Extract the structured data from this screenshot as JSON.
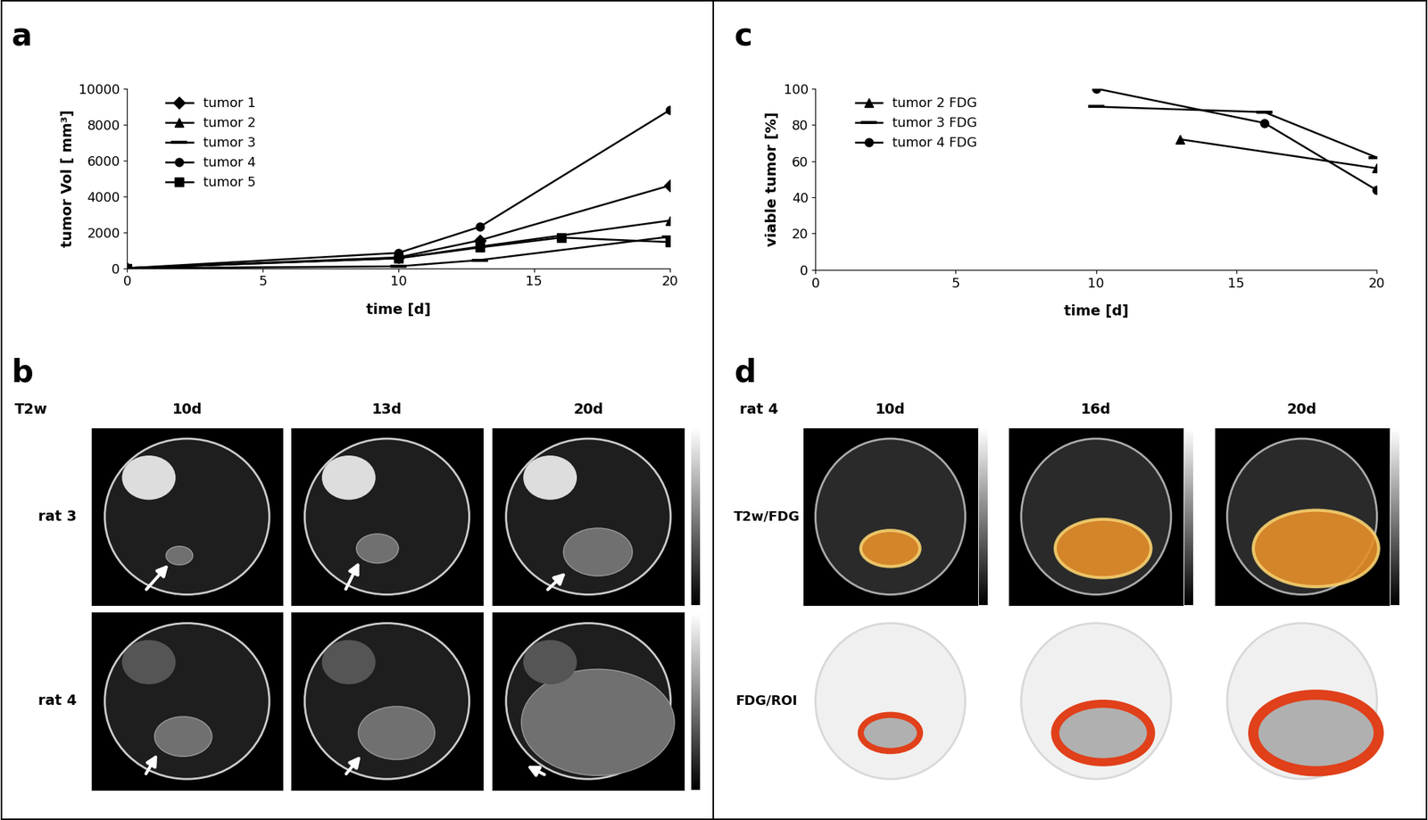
{
  "chart_data": [
    {
      "panel": "a",
      "type": "line",
      "x_label": "time [d]",
      "y_label": "tumor Vol [ mm³]",
      "xlim": [
        0,
        20
      ],
      "xticks": [
        0,
        5,
        10,
        15,
        20
      ],
      "ylim": [
        0,
        10000
      ],
      "yticks": [
        0,
        2000,
        4000,
        6000,
        8000,
        10000
      ],
      "legend": "upper left",
      "series": [
        {
          "name": "tumor 1",
          "color": "#000000",
          "marker": "diamond",
          "x": [
            0,
            10,
            13,
            20
          ],
          "values": [
            0,
            600,
            1550,
            4600
          ]
        },
        {
          "name": "tumor 2",
          "color": "#000000",
          "marker": "triangle",
          "x": [
            0,
            10,
            13,
            20
          ],
          "values": [
            0,
            550,
            1200,
            2650
          ]
        },
        {
          "name": "tumor 3",
          "color": "#000000",
          "marker": "dash",
          "x": [
            0,
            10,
            13,
            20
          ],
          "values": [
            0,
            100,
            450,
            1750
          ]
        },
        {
          "name": "tumor 4",
          "color": "#000000",
          "marker": "circle",
          "x": [
            0,
            10,
            13,
            20
          ],
          "values": [
            0,
            850,
            2300,
            8800
          ]
        },
        {
          "name": "tumor 5",
          "color": "#000000",
          "marker": "square",
          "x": [
            0,
            10,
            13,
            16,
            20
          ],
          "values": [
            0,
            550,
            1150,
            1700,
            1450
          ]
        }
      ]
    },
    {
      "panel": "c",
      "type": "line",
      "x_label": "time [d]",
      "y_label": "viable tumor [%]",
      "xlim": [
        0,
        20
      ],
      "xticks": [
        0,
        5,
        10,
        15,
        20
      ],
      "ylim": [
        0,
        100
      ],
      "yticks": [
        0,
        20,
        40,
        60,
        80,
        100
      ],
      "legend": "upper left",
      "series": [
        {
          "name": "tumor 2 FDG",
          "color": "#000000",
          "marker": "triangle",
          "x": [
            13,
            20
          ],
          "values": [
            72,
            56
          ]
        },
        {
          "name": "tumor 3 FDG",
          "color": "#000000",
          "marker": "dash",
          "x": [
            10,
            16,
            20
          ],
          "values": [
            90,
            87,
            62
          ]
        },
        {
          "name": "tumor 4 FDG",
          "color": "#000000",
          "marker": "circle",
          "x": [
            10,
            16,
            20
          ],
          "values": [
            100,
            81,
            44
          ]
        }
      ]
    }
  ],
  "image_panels": [
    {
      "panel": "b",
      "title": "T2w",
      "columns": [
        "10d",
        "13d",
        "20d"
      ],
      "rows": [
        "rat 3",
        "rat 4"
      ]
    },
    {
      "panel": "d",
      "title": "rat 4",
      "columns": [
        "10d",
        "16d",
        "20d"
      ],
      "rows": [
        "T2w/FDG",
        "FDG/ROI"
      ]
    }
  ]
}
